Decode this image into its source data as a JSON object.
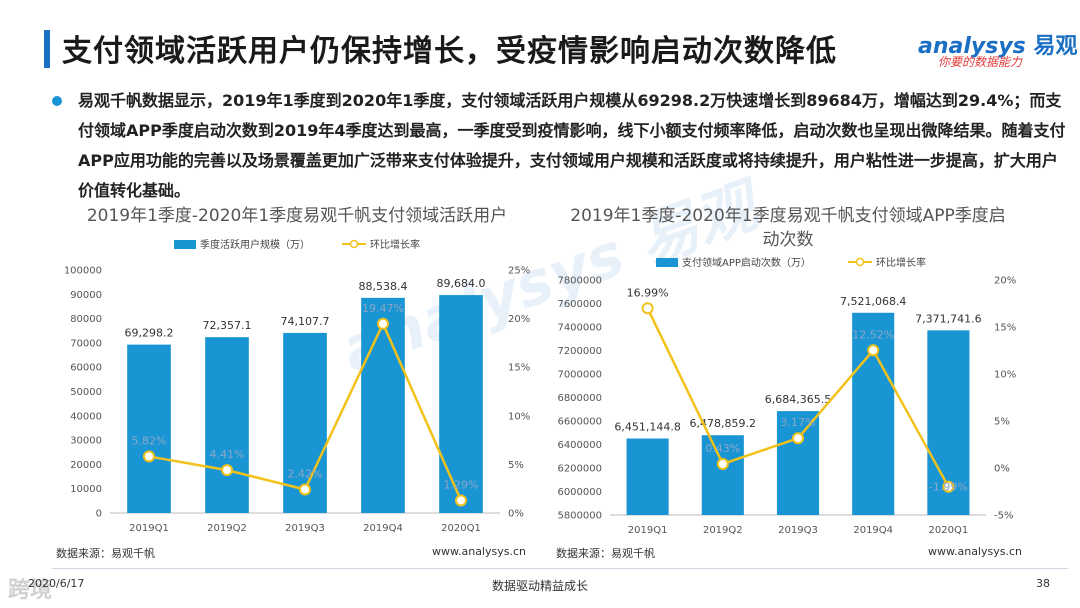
{
  "header": {
    "title": "支付领域活跃用户仍保持增长，受疫情影响启动次数降低",
    "logo_main": "analysys",
    "logo_cn": "易观",
    "logo_sub": "你要的数据能力"
  },
  "summary": "易观千帆数据显示，2019年1季度到2020年1季度，支付领域活跃用户规模从69298.2万快速增长到89684万，增幅达到29.4%；而支付领域APP季度启动次数到2019年4季度达到最高，一季度受到疫情影响，线下小额支付频率降低，启动次数也呈现出微降结果。随着支付APP应用功能的完善以及场景覆盖更加广泛带来支付体验提升，支付领域用户规模和活跃度或将持续提升，用户粘性进一步提高，扩大用户价值转化基础。",
  "watermark": "analysys 易观",
  "charts": [
    {
      "source": "数据来源：易观千帆",
      "url": "www.analysys.cn"
    },
    {
      "source": "数据来源：易观千帆",
      "url": "www.analysys.cn"
    }
  ],
  "chart_data": [
    {
      "type": "bar",
      "title": "2019年1季度-2020年1季度易观千帆支付领域活跃用户",
      "categories": [
        "2019Q1",
        "2019Q2",
        "2019Q3",
        "2019Q4",
        "2020Q1"
      ],
      "series": [
        {
          "name": "季度活跃用户规模（万）",
          "type": "bar",
          "axis": "left",
          "values": [
            69298.2,
            72357.1,
            74107.7,
            88538.4,
            89684.0
          ],
          "labels": [
            "69,298.2",
            "72,357.1",
            "74,107.7",
            "88,538.4",
            "89,684.0"
          ]
        },
        {
          "name": "环比增长率",
          "type": "line",
          "axis": "right",
          "values": [
            5.82,
            4.41,
            2.42,
            19.47,
            1.29
          ],
          "labels": [
            "5.82%",
            "4.41%",
            "2.42%",
            "19.47%",
            "1.29%"
          ]
        }
      ],
      "ylim": [
        0,
        100000
      ],
      "yticks": [
        "0",
        "10000",
        "20000",
        "30000",
        "40000",
        "50000",
        "60000",
        "70000",
        "80000",
        "90000",
        "100000"
      ],
      "y2lim": [
        0,
        25
      ],
      "y2ticks": [
        "0%",
        "5%",
        "10%",
        "15%",
        "20%",
        "25%"
      ],
      "colors": {
        "bar": "#1a95d3",
        "line": "#f2c21b"
      }
    },
    {
      "type": "bar",
      "title": "2019年1季度-2020年1季度易观千帆支付领域APP季度启动次数",
      "categories": [
        "2019Q1",
        "2019Q2",
        "2019Q3",
        "2019Q4",
        "2020Q1"
      ],
      "series": [
        {
          "name": "支付领域APP启动次数（万）",
          "type": "bar",
          "axis": "left",
          "values": [
            6451144.8,
            6478859.2,
            6684365.5,
            7521068.4,
            7371741.6
          ],
          "labels": [
            "6,451,144.8",
            "6,478,859.2",
            "6,684,365.5",
            "7,521,068.4",
            "7,371,741.6"
          ]
        },
        {
          "name": "环比增长率",
          "type": "line",
          "axis": "right",
          "values": [
            16.99,
            0.43,
            3.17,
            12.52,
            -1.99
          ],
          "labels": [
            "16.99%",
            "0.43%",
            "3.17%",
            "12.52%",
            "-1.99%"
          ]
        }
      ],
      "ylim": [
        5800000,
        7800000
      ],
      "yticks": [
        "5800000",
        "6000000",
        "6200000",
        "6400000",
        "6600000",
        "6800000",
        "7000000",
        "7200000",
        "7400000",
        "7600000",
        "7800000"
      ],
      "y2lim": [
        -5,
        20
      ],
      "y2ticks": [
        "-5%",
        "0%",
        "5%",
        "10%",
        "15%",
        "20%"
      ],
      "colors": {
        "bar": "#1a95d3",
        "line": "#f2c21b"
      }
    }
  ],
  "footer": {
    "date": "2020/6/17",
    "center": "数据驱动精益成长",
    "page": "38",
    "corner_mark": "跨境"
  }
}
